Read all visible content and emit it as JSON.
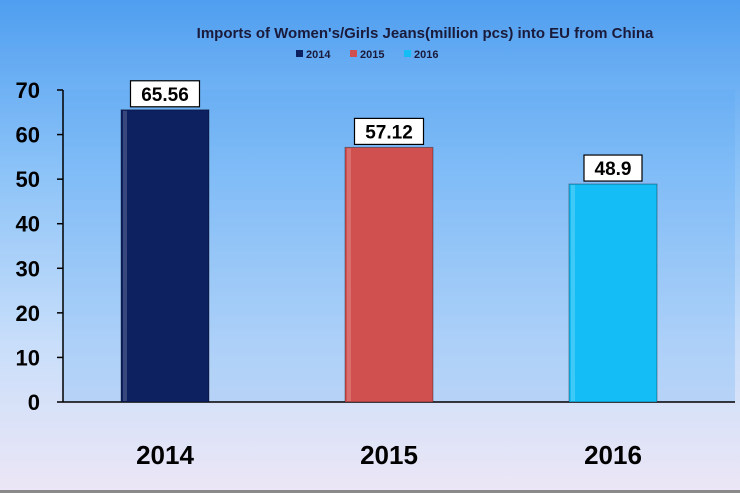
{
  "chart_data": {
    "type": "bar",
    "title": "Imports of Women's/Girls Jeans(million pcs) into EU from China",
    "categories": [
      "2014",
      "2015",
      "2016"
    ],
    "values": [
      65.56,
      57.12,
      48.9
    ],
    "data_labels": [
      "65.56",
      "57.12",
      "48.9"
    ],
    "colors": [
      "#0d2060",
      "#d0504f",
      "#14bdf5"
    ],
    "legend": [
      {
        "label": "2014",
        "color": "#0d2060"
      },
      {
        "label": "2015",
        "color": "#d0504f"
      },
      {
        "label": "2016",
        "color": "#14bdf5"
      }
    ],
    "legend_position": "top-center",
    "ylim": [
      0,
      70
    ],
    "yticks": [
      "0",
      "10",
      "20",
      "30",
      "40",
      "50",
      "60",
      "70"
    ],
    "grid": false,
    "xlabel": "",
    "ylabel": ""
  }
}
